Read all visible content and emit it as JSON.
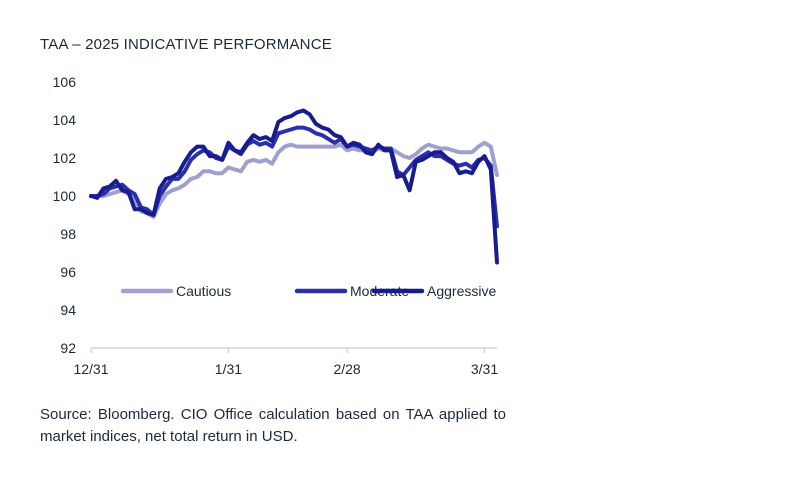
{
  "chart_data": {
    "type": "line",
    "title": "TAA – 2025 INDICATIVE PERFORMANCE",
    "source": "Source: Bloomberg. CIO Office calculation based on TAA applied to market indices, net total return in USD.",
    "xlabel": "",
    "ylabel": "",
    "x_ticks": [
      {
        "label": "12/31",
        "t": 0
      },
      {
        "label": "1/31",
        "t": 22
      },
      {
        "label": "2/28",
        "t": 41
      },
      {
        "label": "3/31",
        "t": 63
      }
    ],
    "x_range": [
      0,
      65
    ],
    "ylim": [
      92,
      106
    ],
    "y_ticks": [
      92,
      94,
      96,
      98,
      100,
      102,
      104,
      106
    ],
    "grid": false,
    "legend_position": "inside-bottom",
    "series": [
      {
        "name": "Cautious",
        "color": "#9fa0d0",
        "values": [
          100.0,
          100.0,
          100.0,
          100.1,
          100.2,
          100.3,
          100.1,
          99.8,
          99.2,
          99.1,
          98.9,
          99.6,
          100.1,
          100.3,
          100.4,
          100.6,
          100.9,
          101.0,
          101.3,
          101.3,
          101.2,
          101.2,
          101.5,
          101.4,
          101.3,
          101.8,
          101.9,
          101.8,
          101.9,
          101.7,
          102.3,
          102.6,
          102.7,
          102.6,
          102.6,
          102.6,
          102.6,
          102.6,
          102.6,
          102.6,
          102.7,
          102.4,
          102.5,
          102.4,
          102.4,
          102.3,
          102.5,
          102.4,
          102.5,
          102.3,
          102.1,
          102.0,
          102.2,
          102.5,
          102.7,
          102.6,
          102.5,
          102.5,
          102.4,
          102.3,
          102.3,
          102.3,
          102.6,
          102.8,
          102.6,
          101.1
        ]
      },
      {
        "name": "Moderate",
        "color": "#2b30a8",
        "values": [
          100.0,
          100.0,
          100.1,
          100.4,
          100.5,
          100.6,
          100.3,
          100.1,
          99.4,
          99.3,
          99.0,
          100.0,
          100.5,
          100.9,
          100.9,
          101.3,
          101.9,
          102.2,
          102.4,
          102.3,
          102.0,
          101.9,
          102.6,
          102.4,
          102.2,
          102.7,
          102.9,
          102.7,
          102.8,
          102.6,
          103.3,
          103.4,
          103.5,
          103.6,
          103.6,
          103.5,
          103.3,
          103.2,
          103.0,
          102.8,
          103.0,
          102.6,
          102.7,
          102.6,
          102.5,
          102.4,
          102.6,
          102.5,
          102.5,
          101.3,
          101.1,
          101.5,
          101.9,
          102.1,
          102.3,
          102.1,
          102.1,
          101.9,
          101.7,
          101.6,
          101.7,
          101.5,
          101.9,
          102.0,
          101.6,
          98.4
        ]
      },
      {
        "name": "Aggressive",
        "color": "#171c8f",
        "values": [
          100.0,
          99.9,
          100.4,
          100.5,
          100.8,
          100.3,
          100.2,
          99.3,
          99.3,
          99.1,
          99.0,
          100.4,
          100.9,
          101.0,
          101.2,
          101.8,
          102.3,
          102.6,
          102.6,
          102.1,
          102.1,
          101.9,
          102.8,
          102.4,
          102.3,
          102.8,
          103.2,
          103.0,
          103.1,
          102.9,
          103.9,
          104.1,
          104.2,
          104.4,
          104.5,
          104.3,
          103.8,
          103.6,
          103.5,
          103.2,
          103.1,
          102.6,
          102.8,
          102.7,
          102.3,
          102.2,
          102.7,
          102.4,
          102.4,
          101.0,
          101.1,
          100.3,
          101.8,
          101.9,
          102.1,
          102.3,
          102.3,
          102.0,
          101.8,
          101.2,
          101.3,
          101.2,
          101.8,
          102.1,
          101.4,
          96.5
        ]
      }
    ]
  }
}
